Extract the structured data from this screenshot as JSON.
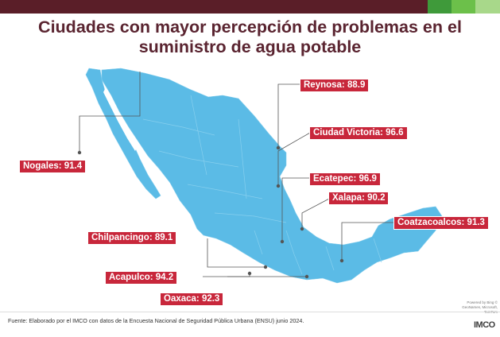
{
  "title": {
    "line1": "Ciudades con mayor percepción de problemas en el",
    "line2": "suministro de agua potable"
  },
  "cities": [
    {
      "id": "reynosa",
      "text": "Reynosa: 88.9",
      "name": "Reynosa",
      "value": 88.9
    },
    {
      "id": "nogales",
      "text": "Nogales: 91.4",
      "name": "Nogales",
      "value": 91.4
    },
    {
      "id": "ciudad-victoria",
      "text": "Ciudad Victoria: 96.6",
      "name": "Ciudad Victoria",
      "value": 96.6
    },
    {
      "id": "ecatepec",
      "text": "Ecatepec: 96.9",
      "name": "Ecatepec",
      "value": 96.9
    },
    {
      "id": "xalapa",
      "text": "Xalapa: 90.2",
      "name": "Xalapa",
      "value": 90.2
    },
    {
      "id": "coatzacoalcos",
      "text": "Coatzacoalcos: 91.3",
      "name": "Coatzacoalcos",
      "value": 91.3
    },
    {
      "id": "chilpancingo",
      "text": "Chilpancingo: 89.1",
      "name": "Chilpancingo",
      "value": 89.1
    },
    {
      "id": "acapulco",
      "text": "Acapulco: 94.2",
      "name": "Acapulco",
      "value": 94.2
    },
    {
      "id": "oaxaca",
      "text": "Oaxaca: 92.3",
      "name": "Oaxaca",
      "value": 92.3
    }
  ],
  "source": "Fuente: Elaborado por el IMCO con datos de la Encuesta Nacional de Seguridad Pública Urbana (ENSU) junio 2024.",
  "copyright": "Powered by Bing © GeoNames, Microsoft, TomTom",
  "logo": "IMCO",
  "colors": {
    "map_fill": "#5bbbe6",
    "label_bg": "#c8273b",
    "title": "#5a2430",
    "topbar": [
      "#5a1e28",
      "#3f9a3a",
      "#6cc04a",
      "#a8d88a"
    ]
  }
}
